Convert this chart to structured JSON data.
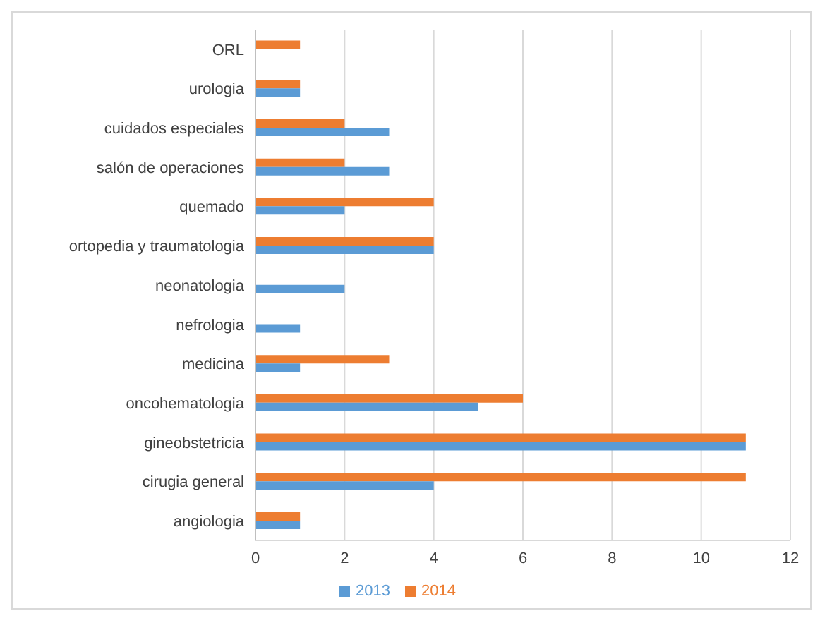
{
  "chart_data": {
    "type": "bar",
    "orientation": "horizontal",
    "categories": [
      "ORL",
      "urologia",
      "cuidados especiales",
      "salón de operaciones",
      "quemado",
      "ortopedia y traumatologia",
      "neonatologia",
      "nefrologia",
      "medicina",
      "oncohematologia",
      "gineobstetricia",
      "cirugia general",
      "angiologia"
    ],
    "series": [
      {
        "name": "2014",
        "color": "#ed7d31",
        "values": [
          1,
          1,
          2,
          2,
          4,
          4,
          0,
          0,
          3,
          6,
          11,
          11,
          1
        ]
      },
      {
        "name": "2013",
        "color": "#5b9bd5",
        "values": [
          0,
          1,
          3,
          3,
          2,
          4,
          2,
          1,
          1,
          5,
          11,
          4,
          1
        ]
      }
    ],
    "xlim": [
      0,
      12
    ],
    "xticks": [
      0,
      2,
      4,
      6,
      8,
      10,
      12
    ],
    "grid": "x",
    "legend": "bottom"
  }
}
